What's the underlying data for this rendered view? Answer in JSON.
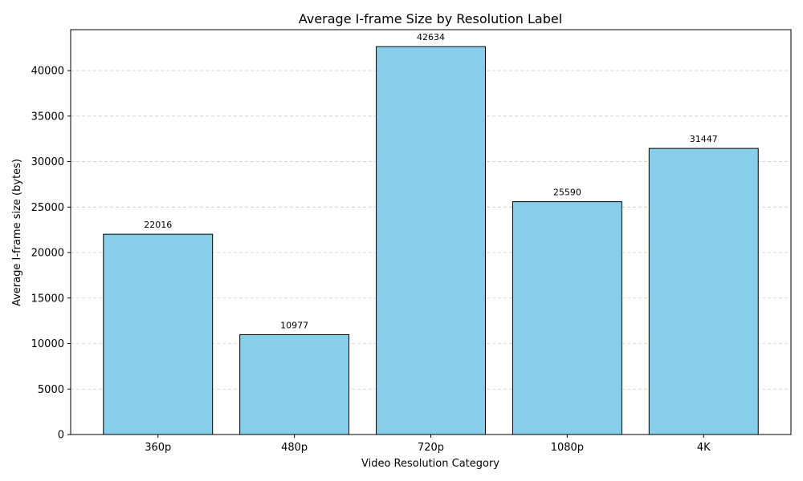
{
  "chart_data": {
    "type": "bar",
    "title": "Average I-frame Size by Resolution Label",
    "xlabel": "Video Resolution Category",
    "ylabel": "Average I-frame size (bytes)",
    "categories": [
      "360p",
      "480p",
      "720p",
      "1080p",
      "4K"
    ],
    "values": [
      22016,
      10977,
      42634,
      25590,
      31447
    ],
    "data_labels": [
      "22016",
      "10977",
      "42634",
      "25590",
      "31447"
    ],
    "ylim": [
      0,
      44500
    ],
    "y_ticks": [
      0,
      5000,
      10000,
      15000,
      20000,
      25000,
      30000,
      35000,
      40000
    ],
    "y_tick_labels": [
      "0",
      "5000",
      "10000",
      "15000",
      "20000",
      "25000",
      "30000",
      "35000",
      "40000"
    ],
    "grid": {
      "y": true,
      "x": false,
      "style": "dashed"
    },
    "colors": {
      "bar_fill": "#87CEEB",
      "bar_edge": "#000000",
      "grid": "#cccccc",
      "axis": "#000000"
    },
    "legend": "none"
  }
}
